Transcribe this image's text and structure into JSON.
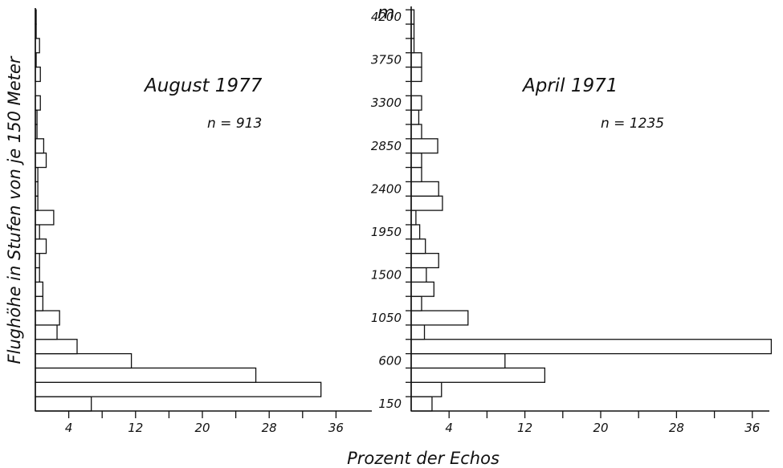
{
  "chart_data": {
    "type": "bar",
    "orientation": "horizontal",
    "y_axis_label": "Flughöhe in Stufen von je 150 Meter",
    "x_axis_label": "Prozent der Echos",
    "y_unit_label": "m",
    "y_tick_labels": [
      "150",
      "600",
      "1050",
      "1500",
      "1950",
      "2400",
      "2850",
      "3300",
      "3750",
      "4200"
    ],
    "x_tick_labels": [
      "4",
      "12",
      "20",
      "28",
      "36"
    ],
    "x_tick_values": [
      4,
      12,
      20,
      28,
      36
    ],
    "xlim": [
      0,
      37
    ],
    "bin_size_m": 150,
    "panels": [
      {
        "title": "August 1977",
        "n_label": "n = 913",
        "values": [
          6.7,
          34.2,
          26.4,
          11.5,
          5.0,
          2.6,
          2.9,
          0.9,
          0.9,
          0.5,
          0.5,
          1.3,
          0.5,
          2.2,
          0.3,
          0.3,
          0.3,
          1.3,
          1.0,
          0.2,
          0.2,
          0.6,
          0.0,
          0.6,
          0.1,
          0.5,
          0.1,
          0.1
        ]
      },
      {
        "title": "April 1971",
        "n_label": "n = 1235",
        "values": [
          2.2,
          3.2,
          14.1,
          9.9,
          38.0,
          1.4,
          6.0,
          1.1,
          2.4,
          1.6,
          2.9,
          1.5,
          0.9,
          0.5,
          3.3,
          2.9,
          1.1,
          1.1,
          2.8,
          1.1,
          0.8,
          1.1,
          0.0,
          1.1,
          1.1,
          0.3,
          0.3,
          0.3
        ]
      }
    ]
  }
}
